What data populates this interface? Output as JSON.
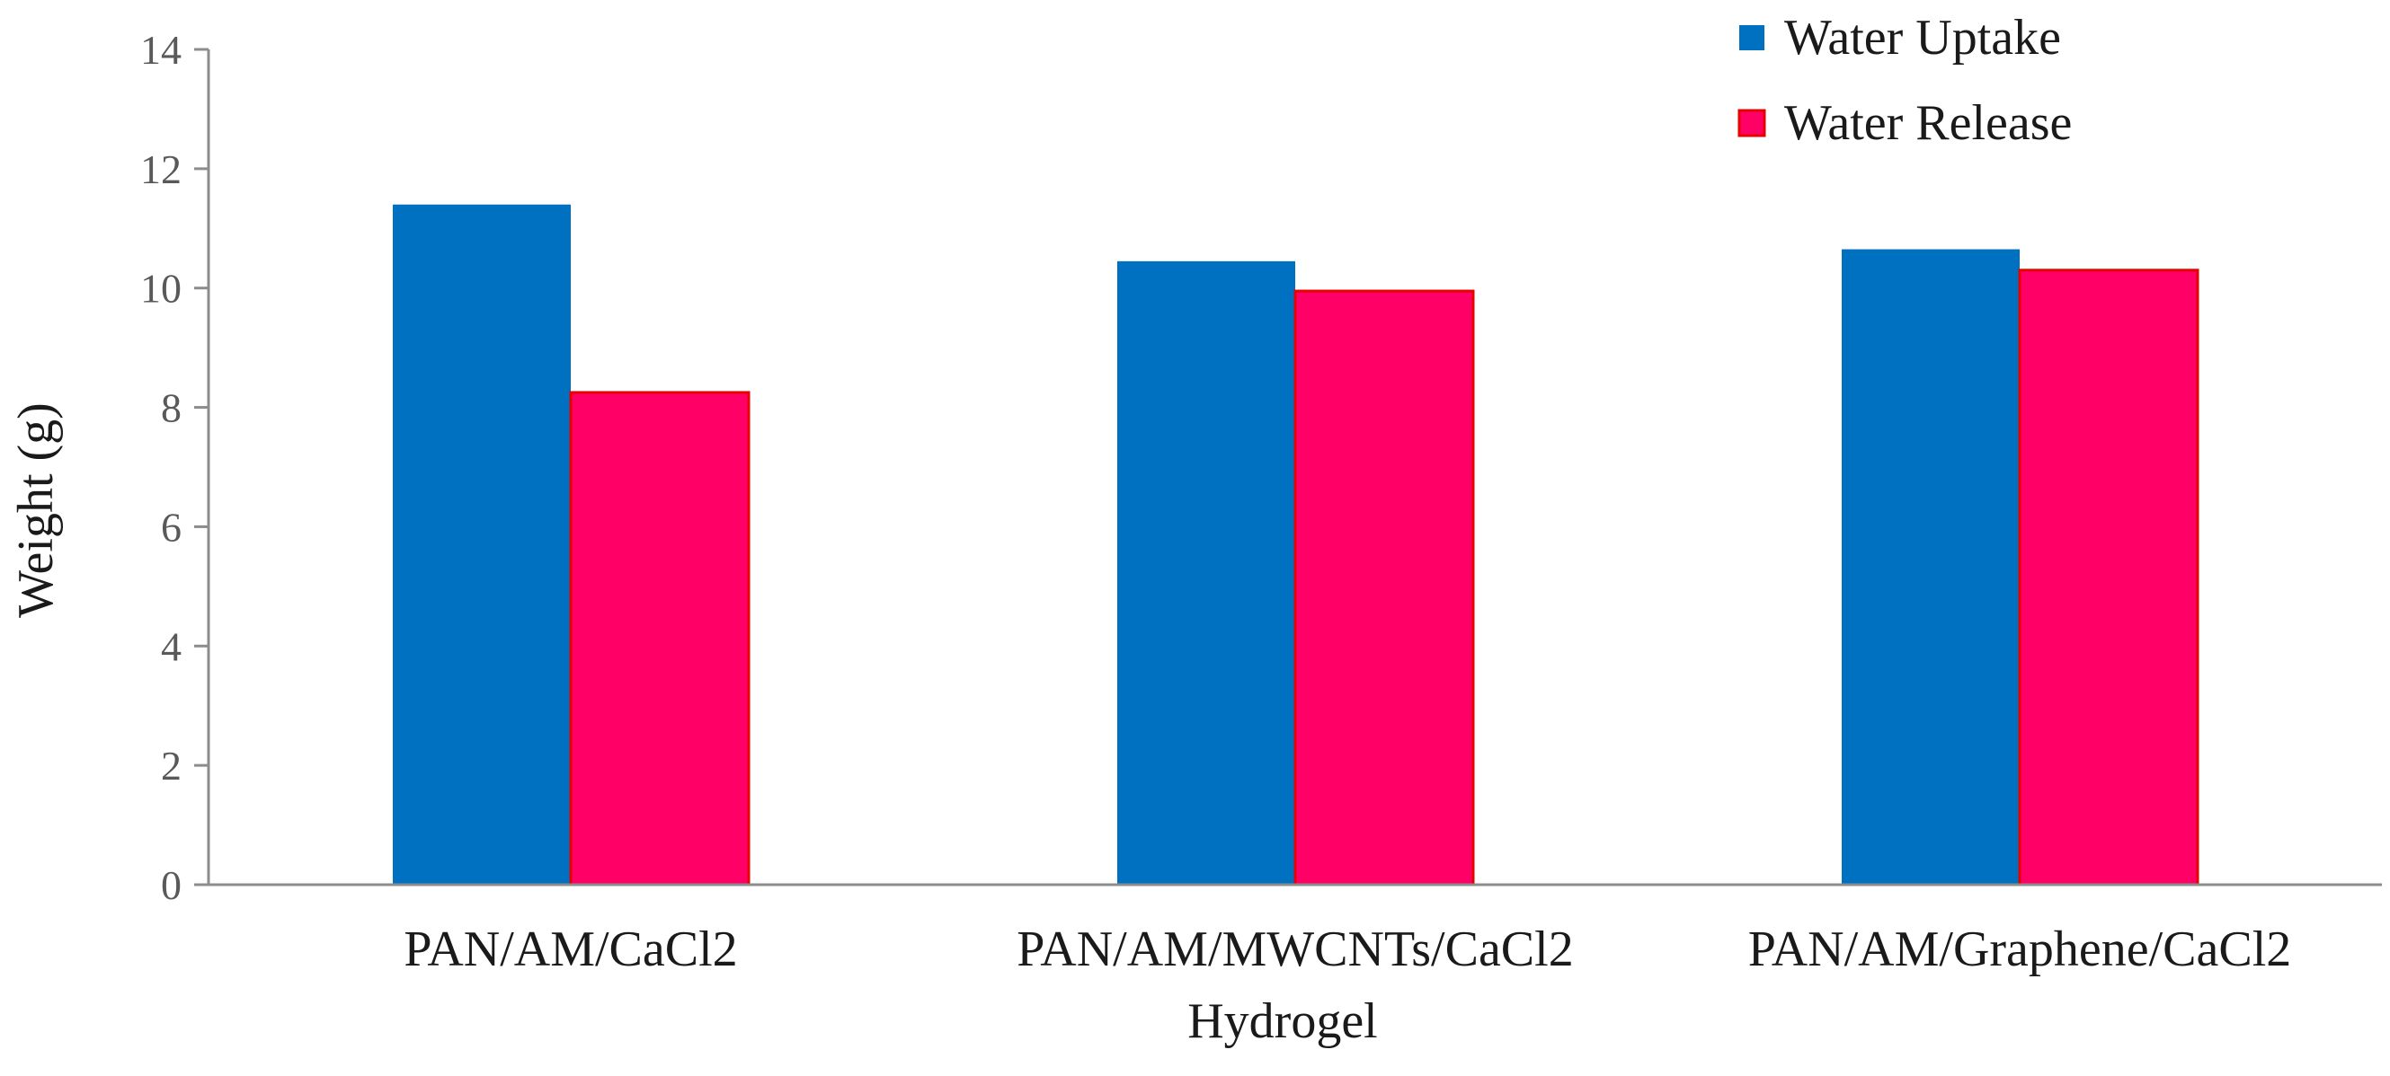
{
  "chart_data": {
    "type": "bar",
    "title": "",
    "xlabel": "Hydrogel",
    "ylabel": "Weight (g)",
    "ylim": [
      0,
      14
    ],
    "yticks": [
      0,
      2,
      4,
      6,
      8,
      10,
      12,
      14
    ],
    "grid": false,
    "legend_position": "top-right",
    "categories": [
      "PAN/AM/CaCl2",
      "PAN/AM/MWCNTs/CaCl2",
      "PAN/AM/Graphene/CaCl2"
    ],
    "series": [
      {
        "name": "Water Uptake",
        "color": "#0070C0",
        "values": [
          11.4,
          10.45,
          10.65
        ]
      },
      {
        "name": "Water Release",
        "color": "#FF0066",
        "stroke": "#E60000",
        "values": [
          8.25,
          9.95,
          10.3
        ]
      }
    ]
  }
}
